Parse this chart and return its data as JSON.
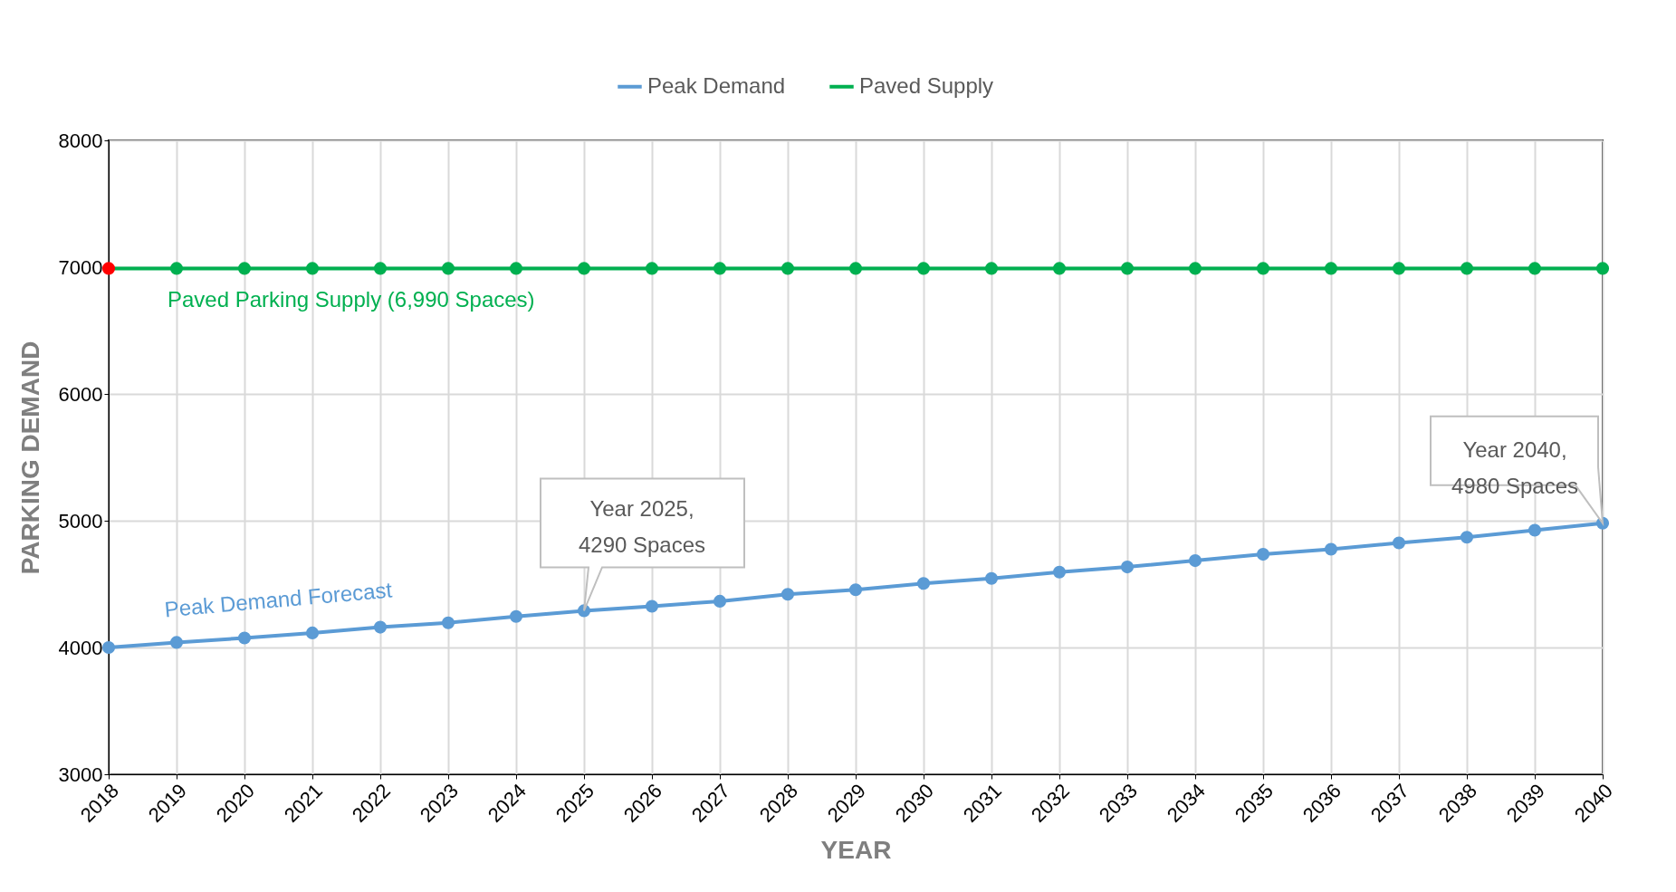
{
  "chart_data": {
    "type": "line",
    "xlabel": "YEAR",
    "ylabel": "PARKING DEMAND",
    "categories": [
      "2018",
      "2019",
      "2020",
      "2021",
      "2022",
      "2023",
      "2024",
      "2025",
      "2026",
      "2027",
      "2028",
      "2029",
      "2030",
      "2031",
      "2032",
      "2033",
      "2034",
      "2035",
      "2036",
      "2037",
      "2038",
      "2039",
      "2040"
    ],
    "series": [
      {
        "name": "Peak Demand",
        "color": "#5b9bd5",
        "values": [
          4000,
          4040,
          4075,
          4115,
          4160,
          4195,
          4245,
          4290,
          4325,
          4365,
          4420,
          4455,
          4505,
          4545,
          4595,
          4635,
          4685,
          4735,
          4775,
          4825,
          4870,
          4925,
          4980
        ]
      },
      {
        "name": "Paved Supply",
        "color": "#00b050",
        "colors": [
          "#ff0000",
          "#00b050",
          "#00b050",
          "#00b050",
          "#00b050",
          "#00b050",
          "#00b050",
          "#00b050",
          "#00b050",
          "#00b050",
          "#00b050",
          "#00b050",
          "#00b050",
          "#00b050",
          "#00b050",
          "#00b050",
          "#00b050",
          "#00b050",
          "#00b050",
          "#00b050",
          "#00b050",
          "#00b050",
          "#00b050"
        ],
        "values": [
          6990,
          6990,
          6990,
          6990,
          6990,
          6990,
          6990,
          6990,
          6990,
          6990,
          6990,
          6990,
          6990,
          6990,
          6990,
          6990,
          6990,
          6990,
          6990,
          6990,
          6990,
          6990,
          6990
        ]
      }
    ],
    "ylim": [
      3000,
      8000
    ],
    "yticks": [
      3000,
      4000,
      5000,
      6000,
      7000,
      8000
    ],
    "annotations": [
      {
        "text": "Paved Parking Supply (6,990 Spaces)",
        "x": "2019",
        "y": 6990
      },
      {
        "text": "Peak Demand  Forecast",
        "x": "2019",
        "y": 4040
      },
      {
        "text": "Year 2025,\n4290 Spaces",
        "x": "2025",
        "y": 4290
      },
      {
        "text": "Year 2040,\n4980 Spaces",
        "x": "2040",
        "y": 4980
      }
    ],
    "grid": true,
    "legend": "top",
    "marker": "circle"
  }
}
